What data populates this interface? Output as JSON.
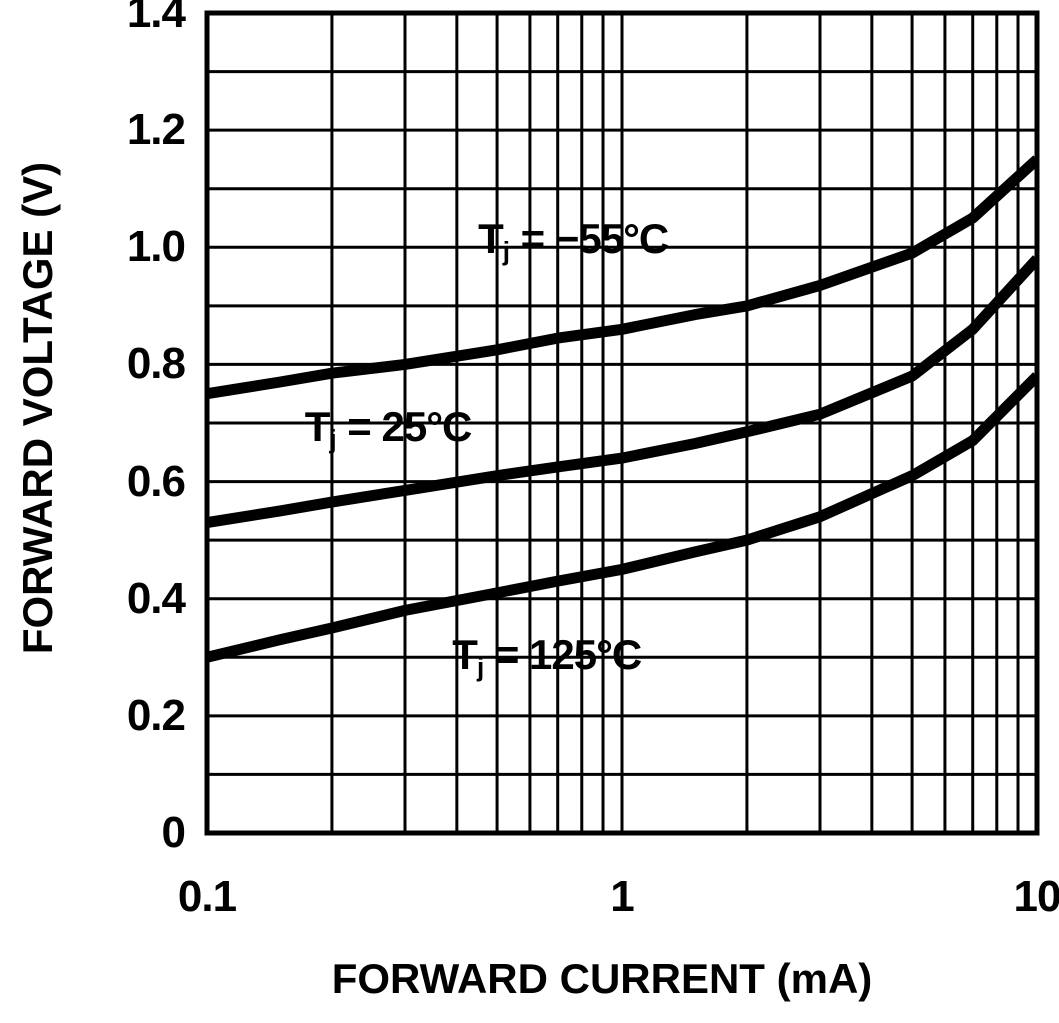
{
  "chart_data": {
    "type": "line",
    "title": "",
    "xlabel": "FORWARD CURRENT (mA)",
    "ylabel": "FORWARD VOLTAGE (V)",
    "x_scale": "log",
    "y_scale": "linear",
    "xlim": [
      0.1,
      10
    ],
    "ylim": [
      0,
      1.4
    ],
    "grid": true,
    "grid_style": "x: log minor lines each decade; y: lines every 0.1",
    "legend_position": "inline-curve-labels",
    "line_color": "#000000",
    "background_color": "#ffffff",
    "x_ticks": [
      {
        "value": 0.1,
        "label": "0.1"
      },
      {
        "value": 1,
        "label": "1"
      },
      {
        "value": 10,
        "label": "10"
      }
    ],
    "y_ticks": [
      {
        "value": 0,
        "label": "0"
      },
      {
        "value": 0.2,
        "label": "0.2"
      },
      {
        "value": 0.4,
        "label": "0.4"
      },
      {
        "value": 0.6,
        "label": "0.6"
      },
      {
        "value": 0.8,
        "label": "0.8"
      },
      {
        "value": 1.0,
        "label": "1.0"
      },
      {
        "value": 1.2,
        "label": "1.2"
      },
      {
        "value": 1.4,
        "label": "1.4"
      }
    ],
    "y_grid_step": 0.1,
    "series": [
      {
        "name": "Tj = −55°C",
        "label_parts": {
          "pre": "T",
          "sub": "j",
          "post": " = −55°C"
        },
        "label_anchor": {
          "x": 0.45,
          "y": 1.01
        },
        "points": {
          "x": [
            0.1,
            0.15,
            0.2,
            0.3,
            0.5,
            0.7,
            1,
            1.5,
            2,
            3,
            5,
            7,
            10
          ],
          "y": [
            0.75,
            0.77,
            0.785,
            0.8,
            0.825,
            0.845,
            0.86,
            0.885,
            0.9,
            0.935,
            0.99,
            1.05,
            1.15
          ]
        }
      },
      {
        "name": "Tj = 25°C",
        "label_parts": {
          "pre": "T",
          "sub": "j",
          "post": " = 25°C"
        },
        "label_anchor": {
          "x": 0.172,
          "y": 0.69
        },
        "points": {
          "x": [
            0.1,
            0.15,
            0.2,
            0.3,
            0.5,
            0.7,
            1,
            1.5,
            2,
            3,
            5,
            7,
            10
          ],
          "y": [
            0.53,
            0.55,
            0.565,
            0.585,
            0.61,
            0.625,
            0.64,
            0.665,
            0.685,
            0.715,
            0.78,
            0.86,
            0.98
          ]
        }
      },
      {
        "name": "Tj = 125°C",
        "label_parts": {
          "pre": "T",
          "sub": "j",
          "post": " = 125°C"
        },
        "label_anchor": {
          "x": 0.39,
          "y": 0.3
        },
        "points": {
          "x": [
            0.1,
            0.15,
            0.2,
            0.3,
            0.5,
            0.7,
            1,
            1.5,
            2,
            3,
            5,
            7,
            10
          ],
          "y": [
            0.3,
            0.33,
            0.35,
            0.38,
            0.41,
            0.43,
            0.45,
            0.48,
            0.5,
            0.54,
            0.61,
            0.67,
            0.78
          ]
        }
      }
    ]
  }
}
